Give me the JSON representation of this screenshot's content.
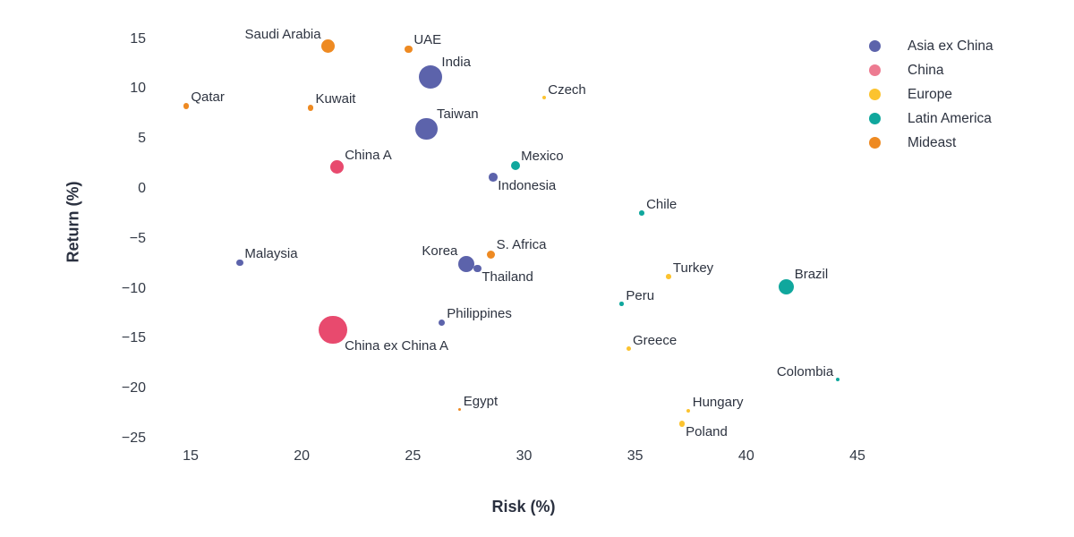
{
  "chart_data": {
    "type": "scatter",
    "title": "",
    "xlabel": "Risk (%)",
    "ylabel": "Return (%)",
    "x_ticks": [
      15,
      20,
      25,
      30,
      35,
      40,
      45
    ],
    "y_ticks": [
      15,
      10,
      5,
      0,
      -5,
      -10,
      -15,
      -20,
      -25
    ],
    "xlim": [
      13.2,
      47.0
    ],
    "ylim": [
      -26.5,
      16.5
    ],
    "grid": false,
    "legend_position": "top-right",
    "series": [
      {
        "name": "Asia ex China",
        "color": "#5c63ab",
        "legend_color": "#5c63ab"
      },
      {
        "name": "China",
        "color": "#e84a6e",
        "legend_color": "#ed7b91"
      },
      {
        "name": "Europe",
        "color": "#fcc32f",
        "legend_color": "#fcc32f"
      },
      {
        "name": "Latin America",
        "color": "#10a79d",
        "legend_color": "#10a79d"
      },
      {
        "name": "Mideast",
        "color": "#ee8a22",
        "legend_color": "#ee8a22"
      }
    ],
    "points": [
      {
        "label": "Qatar",
        "series": "Mideast",
        "risk": 14.8,
        "return": 8.3,
        "r": 3.3,
        "label_side": "top-right"
      },
      {
        "label": "Malaysia",
        "series": "Asia ex China",
        "risk": 17.2,
        "return": -7.4,
        "r": 3.9,
        "label_side": "top-right"
      },
      {
        "label": "Kuwait",
        "series": "Mideast",
        "risk": 20.4,
        "return": 8.1,
        "r": 3.3,
        "label_side": "top-right"
      },
      {
        "label": "Saudi Arabia",
        "series": "Mideast",
        "risk": 21.2,
        "return": 14.3,
        "r": 7.5,
        "label_side": "top-left"
      },
      {
        "label": "China ex China A",
        "series": "China",
        "risk": 21.4,
        "return": -14.1,
        "r": 15.8,
        "label_side": "bottom-right"
      },
      {
        "label": "China A",
        "series": "China",
        "risk": 21.6,
        "return": 2.2,
        "r": 7.5,
        "label_side": "top-right"
      },
      {
        "label": "UAE",
        "series": "Mideast",
        "risk": 24.8,
        "return": 14.0,
        "r": 4.2,
        "label_side": "top-right"
      },
      {
        "label": "Taiwan",
        "series": "Asia ex China",
        "risk": 25.6,
        "return": 6.0,
        "r": 12.3,
        "label_side": "top-right"
      },
      {
        "label": "India",
        "series": "Asia ex China",
        "risk": 25.8,
        "return": 11.2,
        "r": 13.0,
        "label_side": "top-right"
      },
      {
        "label": "Philippines",
        "series": "Asia ex China",
        "risk": 26.3,
        "return": -13.4,
        "r": 3.8,
        "label_side": "top-right"
      },
      {
        "label": "Egypt",
        "series": "Mideast",
        "risk": 27.1,
        "return": -22.1,
        "r": 1.8,
        "label_side": "top-right"
      },
      {
        "label": "Korea",
        "series": "Asia ex China",
        "risk": 27.4,
        "return": -7.5,
        "r": 9.2,
        "label_side": "top-left"
      },
      {
        "label": "Thailand",
        "series": "Asia ex China",
        "risk": 27.9,
        "return": -8.0,
        "r": 4.2,
        "label_side": "bottom-right"
      },
      {
        "label": "S. Africa",
        "series": "Mideast",
        "risk": 28.5,
        "return": -6.6,
        "r": 4.7,
        "label_side": "top-right"
      },
      {
        "label": "Indonesia",
        "series": "Asia ex China",
        "risk": 28.6,
        "return": 1.2,
        "r": 4.9,
        "label_side": "bottom-right"
      },
      {
        "label": "Mexico",
        "series": "Latin America",
        "risk": 29.6,
        "return": 2.3,
        "r": 5.0,
        "label_side": "top-right"
      },
      {
        "label": "Czech",
        "series": "Europe",
        "risk": 30.9,
        "return": 9.1,
        "r": 2.0,
        "label_side": "top-right"
      },
      {
        "label": "Peru",
        "series": "Latin America",
        "risk": 34.4,
        "return": -11.5,
        "r": 2.3,
        "label_side": "top-right"
      },
      {
        "label": "Greece",
        "series": "Europe",
        "risk": 34.7,
        "return": -16.0,
        "r": 2.5,
        "label_side": "top-right"
      },
      {
        "label": "Chile",
        "series": "Latin America",
        "risk": 35.3,
        "return": -2.4,
        "r": 2.8,
        "label_side": "top-right"
      },
      {
        "label": "Turkey",
        "series": "Europe",
        "risk": 36.5,
        "return": -8.8,
        "r": 2.8,
        "label_side": "top-right"
      },
      {
        "label": "Poland",
        "series": "Europe",
        "risk": 37.1,
        "return": -23.5,
        "r": 3.3,
        "label_side": "bottom-right"
      },
      {
        "label": "Hungary",
        "series": "Europe",
        "risk": 37.4,
        "return": -22.2,
        "r": 2.1,
        "label_side": "top-right"
      },
      {
        "label": "Brazil",
        "series": "Latin America",
        "risk": 41.8,
        "return": -9.8,
        "r": 8.7,
        "label_side": "top-right"
      },
      {
        "label": "Colombia",
        "series": "Latin America",
        "risk": 44.1,
        "return": -19.1,
        "r": 2.0,
        "label_side": "top-left"
      }
    ]
  }
}
